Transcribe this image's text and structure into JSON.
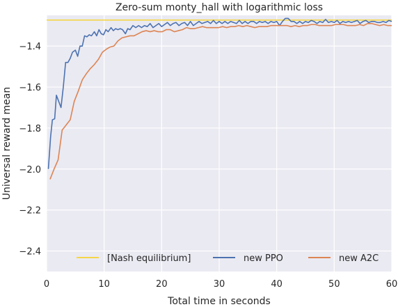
{
  "chart_data": {
    "type": "line",
    "title": "Zero-sum monty_hall with logarithmic loss",
    "xlabel": "Total time in seconds",
    "ylabel": "Universal reward mean",
    "xlim": [
      0,
      60
    ],
    "ylim": [
      -2.5,
      -1.25
    ],
    "xticks": [
      0,
      10,
      20,
      30,
      40,
      50,
      60
    ],
    "yticks": [
      -2.4,
      -2.2,
      -2.0,
      -1.8,
      -1.6,
      -1.4
    ],
    "xtick_labels": [
      "0",
      "10",
      "20",
      "30",
      "40",
      "50",
      "60"
    ],
    "ytick_labels": [
      "−2.4",
      "−2.2",
      "−2.0",
      "−1.8",
      "−1.6",
      "−1.4"
    ],
    "grid": true,
    "legend": "bottom",
    "series": [
      {
        "name": "[Nash equilibrium]",
        "color": "#f5d547",
        "x": [
          0,
          60
        ],
        "y": [
          -1.273,
          -1.273
        ]
      },
      {
        "name": "new PPO",
        "color": "#4c72b0",
        "x": [
          0.3,
          0.7,
          1.0,
          1.4,
          1.7,
          2.1,
          2.5,
          2.9,
          3.3,
          3.7,
          4.1,
          4.5,
          5.0,
          5.4,
          5.8,
          6.2,
          6.6,
          7.0,
          7.4,
          7.8,
          8.3,
          8.7,
          9.1,
          9.5,
          9.9,
          10.3,
          10.7,
          11.2,
          11.6,
          12.0,
          12.4,
          12.8,
          13.2,
          13.7,
          14.1,
          14.5,
          15.0,
          15.5,
          16.0,
          16.5,
          17.0,
          17.5,
          18.0,
          18.5,
          19.0,
          19.5,
          20.0,
          20.5,
          21.0,
          21.5,
          22.0,
          22.5,
          23.0,
          23.5,
          24.0,
          24.5,
          25.0,
          25.5,
          26.0,
          26.5,
          27.0,
          27.5,
          28.0,
          28.5,
          29.0,
          29.5,
          30.0,
          30.5,
          31.0,
          31.5,
          32.0,
          32.5,
          33.0,
          33.5,
          34.0,
          34.5,
          35.0,
          35.5,
          36.0,
          36.5,
          37.0,
          37.5,
          38.0,
          38.5,
          39.0,
          39.5,
          40.0,
          40.5,
          41.0,
          41.5,
          42.0,
          42.5,
          43.0,
          43.5,
          44.0,
          44.5,
          45.0,
          45.5,
          46.0,
          46.5,
          47.0,
          47.5,
          48.0,
          48.5,
          49.0,
          49.5,
          50.0,
          50.5,
          51.0,
          51.5,
          52.0,
          52.5,
          53.0,
          53.5,
          54.0,
          54.5,
          55.0,
          55.5,
          56.0,
          56.5,
          57.0,
          57.5,
          58.0,
          58.5,
          59.0,
          59.5,
          60.0
        ],
        "y": [
          -2.0,
          -1.84,
          -1.76,
          -1.755,
          -1.64,
          -1.67,
          -1.7,
          -1.6,
          -1.48,
          -1.48,
          -1.46,
          -1.43,
          -1.42,
          -1.45,
          -1.4,
          -1.4,
          -1.35,
          -1.355,
          -1.345,
          -1.35,
          -1.33,
          -1.35,
          -1.32,
          -1.34,
          -1.345,
          -1.32,
          -1.33,
          -1.31,
          -1.325,
          -1.315,
          -1.32,
          -1.315,
          -1.32,
          -1.34,
          -1.315,
          -1.32,
          -1.3,
          -1.31,
          -1.3,
          -1.31,
          -1.3,
          -1.305,
          -1.29,
          -1.31,
          -1.3,
          -1.29,
          -1.305,
          -1.295,
          -1.285,
          -1.3,
          -1.29,
          -1.285,
          -1.3,
          -1.29,
          -1.285,
          -1.3,
          -1.28,
          -1.3,
          -1.29,
          -1.28,
          -1.29,
          -1.285,
          -1.28,
          -1.29,
          -1.275,
          -1.29,
          -1.28,
          -1.29,
          -1.28,
          -1.29,
          -1.28,
          -1.285,
          -1.29,
          -1.275,
          -1.29,
          -1.28,
          -1.29,
          -1.28,
          -1.28,
          -1.29,
          -1.28,
          -1.285,
          -1.28,
          -1.29,
          -1.28,
          -1.285,
          -1.28,
          -1.3,
          -1.28,
          -1.265,
          -1.265,
          -1.28,
          -1.28,
          -1.29,
          -1.28,
          -1.29,
          -1.28,
          -1.285,
          -1.275,
          -1.28,
          -1.29,
          -1.28,
          -1.285,
          -1.27,
          -1.285,
          -1.28,
          -1.285,
          -1.275,
          -1.29,
          -1.28,
          -1.285,
          -1.28,
          -1.285,
          -1.28,
          -1.275,
          -1.29,
          -1.28,
          -1.275,
          -1.285,
          -1.28,
          -1.28,
          -1.285,
          -1.285,
          -1.28,
          -1.285,
          -1.275,
          -1.28
        ]
      },
      {
        "name": "new A2C",
        "color": "#dd8452",
        "x": [
          0.6,
          1.3,
          2.0,
          2.7,
          3.4,
          4.1,
          4.8,
          5.5,
          6.2,
          6.9,
          7.6,
          8.3,
          9.0,
          9.7,
          10.4,
          11.0,
          11.7,
          12.4,
          13.1,
          13.8,
          14.5,
          15.2,
          15.9,
          16.6,
          17.3,
          18.0,
          18.7,
          19.4,
          20.1,
          20.8,
          21.5,
          22.2,
          22.9,
          23.6,
          24.3,
          25.0,
          25.7,
          26.4,
          27.1,
          27.8,
          28.5,
          29.2,
          29.9,
          30.6,
          31.3,
          32.0,
          32.7,
          33.4,
          34.1,
          34.8,
          35.5,
          36.2,
          36.9,
          37.6,
          38.3,
          39.0,
          39.7,
          40.4,
          41.1,
          41.8,
          42.5,
          43.2,
          43.9,
          44.6,
          45.3,
          46.0,
          46.7,
          47.4,
          48.1,
          48.8,
          49.5,
          50.2,
          50.9,
          51.6,
          52.3,
          53.0,
          53.7,
          54.4,
          55.1,
          55.8,
          56.5,
          57.2,
          57.9,
          58.6,
          59.3,
          60.0
        ],
        "y": [
          -2.05,
          -2.0,
          -1.955,
          -1.81,
          -1.785,
          -1.76,
          -1.67,
          -1.62,
          -1.565,
          -1.535,
          -1.51,
          -1.49,
          -1.465,
          -1.43,
          -1.415,
          -1.405,
          -1.4,
          -1.375,
          -1.36,
          -1.355,
          -1.35,
          -1.35,
          -1.34,
          -1.33,
          -1.325,
          -1.33,
          -1.325,
          -1.33,
          -1.33,
          -1.32,
          -1.32,
          -1.33,
          -1.325,
          -1.32,
          -1.31,
          -1.315,
          -1.315,
          -1.31,
          -1.305,
          -1.31,
          -1.31,
          -1.31,
          -1.31,
          -1.305,
          -1.31,
          -1.305,
          -1.305,
          -1.3,
          -1.305,
          -1.3,
          -1.305,
          -1.31,
          -1.305,
          -1.305,
          -1.305,
          -1.3,
          -1.3,
          -1.3,
          -1.3,
          -1.3,
          -1.305,
          -1.3,
          -1.305,
          -1.3,
          -1.3,
          -1.295,
          -1.295,
          -1.3,
          -1.3,
          -1.3,
          -1.3,
          -1.295,
          -1.295,
          -1.295,
          -1.3,
          -1.3,
          -1.3,
          -1.295,
          -1.3,
          -1.29,
          -1.29,
          -1.295,
          -1.3,
          -1.295,
          -1.3,
          -1.3
        ]
      }
    ]
  }
}
